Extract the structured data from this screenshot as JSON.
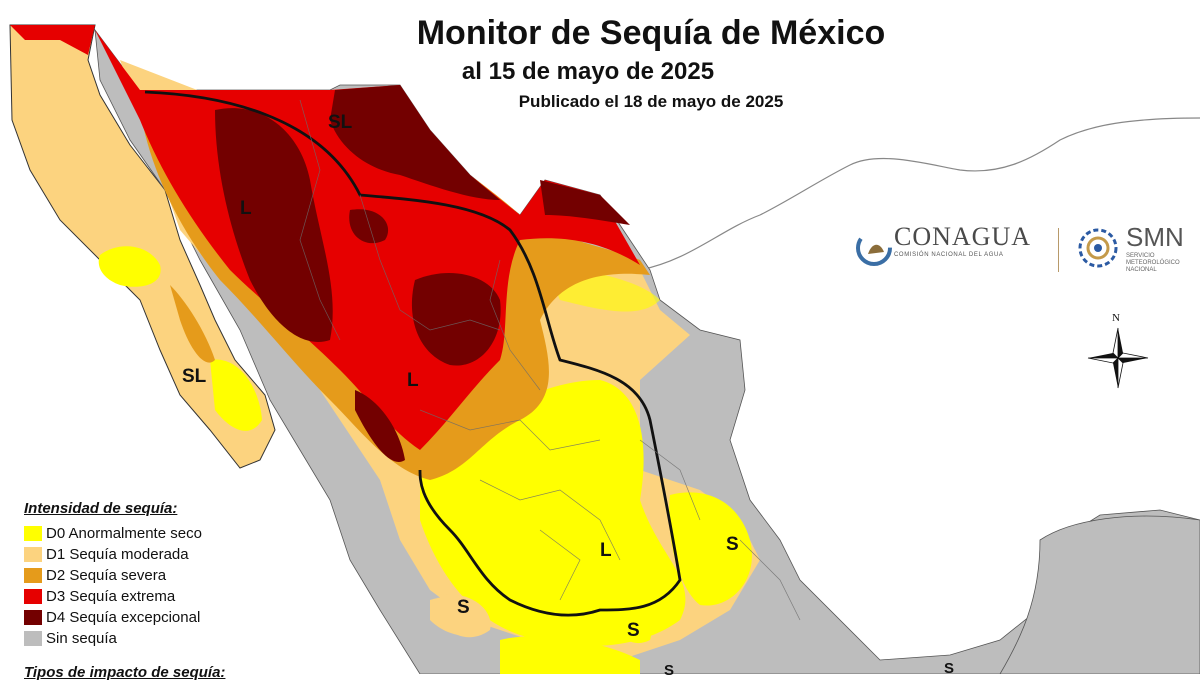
{
  "header": {
    "title": "Monitor de Sequía de México",
    "subtitle": "al 15 de mayo de 2025",
    "published": "Publicado el 18 de mayo de 2025"
  },
  "map_labels": {
    "l_sonora": "L",
    "sl_north": "SL",
    "l_chihuahua": "L",
    "sl_bcs": "SL",
    "l_center": "L",
    "s_east": "S",
    "s_west": "S",
    "s_south": "S",
    "s_bottom": "S",
    "s_gulf": "S"
  },
  "legend": {
    "title": "Intensidad de sequía:",
    "items": [
      {
        "code": "D0",
        "label": "D0 Anormalmente seco",
        "color": "#ffff00"
      },
      {
        "code": "D1",
        "label": "D1 Sequía moderada",
        "color": "#fcd37f"
      },
      {
        "code": "D2",
        "label": "D2 Sequía severa",
        "color": "#e59b1b"
      },
      {
        "code": "D3",
        "label": "D3 Sequía extrema",
        "color": "#e60000"
      },
      {
        "code": "D4",
        "label": "D4 Sequía excepcional",
        "color": "#730000"
      },
      {
        "code": "none",
        "label": "Sin sequía",
        "color": "#bdbdbd"
      }
    ],
    "impact_title": "Tipos de impacto de sequía:"
  },
  "logos": {
    "conagua": "CONAGUA",
    "conagua_sub": "COMISIÓN NACIONAL DEL AGUA",
    "smn": "SMN",
    "smn_sub_1": "SERVICIO",
    "smn_sub_2": "METEOROLÓGICO",
    "smn_sub_3": "NACIONAL"
  },
  "compass": {
    "north": "N"
  },
  "colors": {
    "D0": "#ffff00",
    "D1": "#fcd37f",
    "D2": "#e59b1b",
    "D3": "#e60000",
    "D4": "#730000",
    "no_drought": "#bdbdbd",
    "water": "#ffffff",
    "conagua_blue": "#3a6ea5",
    "smn_blue": "#2b5aa3"
  }
}
